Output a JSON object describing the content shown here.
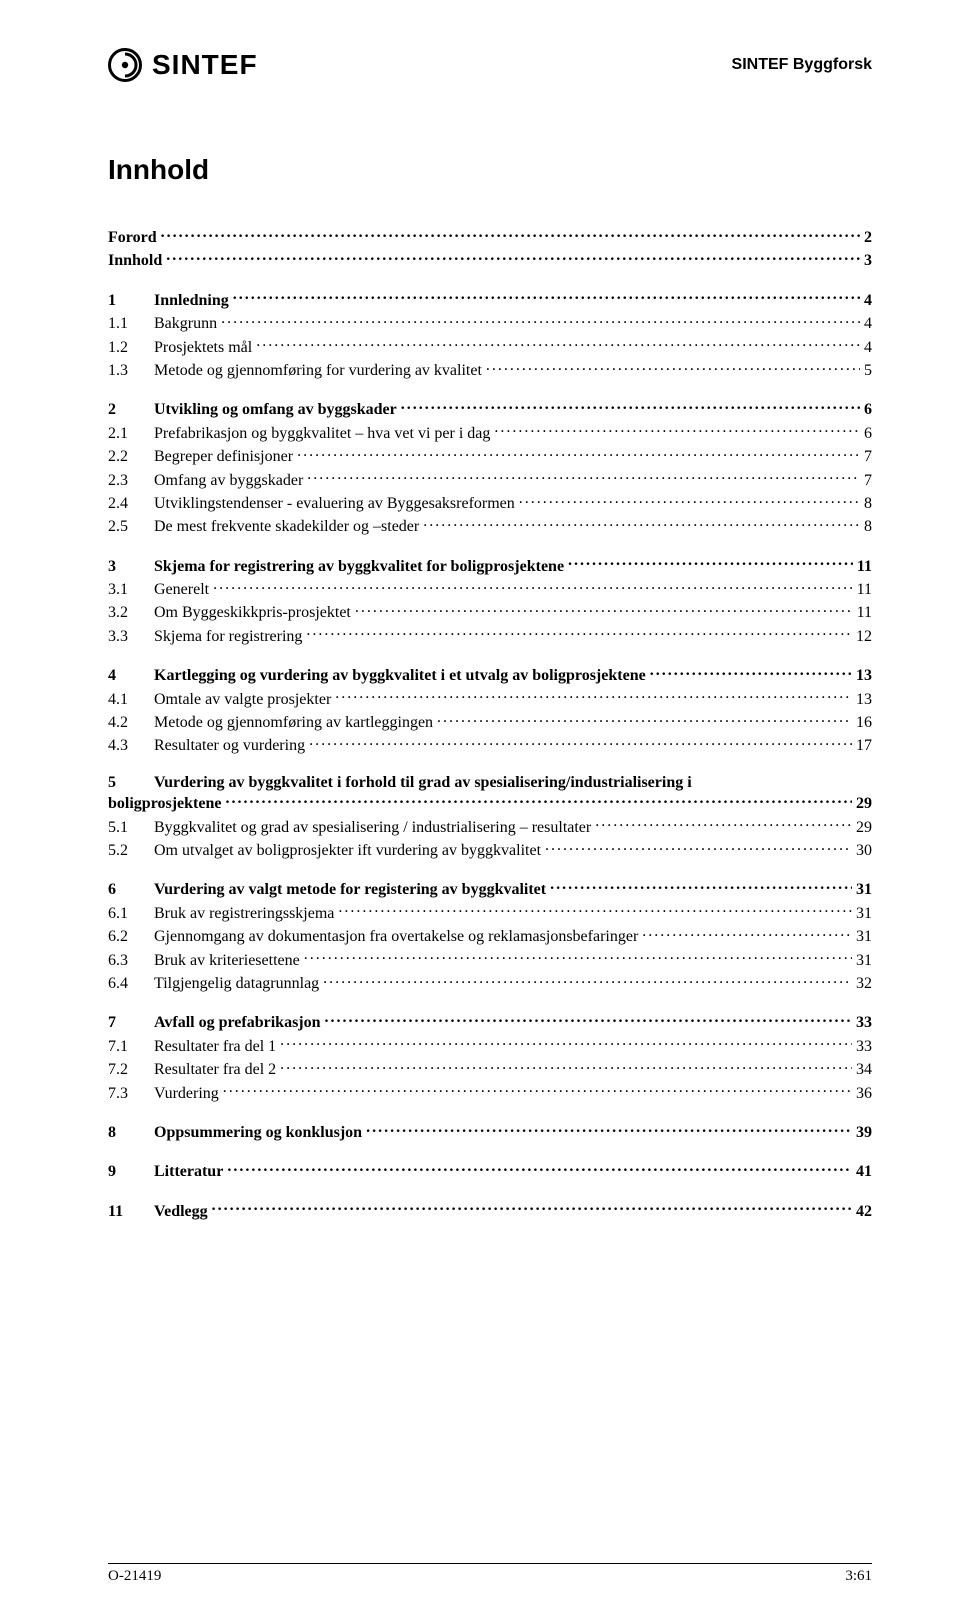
{
  "header": {
    "logo_word": "SINTEF",
    "right_text": "SINTEF Byggforsk"
  },
  "title": "Innhold",
  "toc": [
    {
      "type": "plain",
      "num": "",
      "label": "Forord",
      "page": "2"
    },
    {
      "type": "plain",
      "num": "",
      "label": "Innhold",
      "page": "3"
    },
    {
      "type": "section",
      "num": "1",
      "label": "Innledning",
      "page": "4"
    },
    {
      "type": "sub",
      "num": "1.1",
      "label": "Bakgrunn",
      "page": "4"
    },
    {
      "type": "sub",
      "num": "1.2",
      "label": "Prosjektets mål",
      "page": "4"
    },
    {
      "type": "sub",
      "num": "1.3",
      "label": "Metode og gjennomføring for vurdering av kvalitet",
      "page": "5"
    },
    {
      "type": "section",
      "num": "2",
      "label": "Utvikling og omfang av byggskader",
      "page": "6"
    },
    {
      "type": "sub",
      "num": "2.1",
      "label": "Prefabrikasjon og byggkvalitet – hva vet vi per i dag",
      "page": "6"
    },
    {
      "type": "sub",
      "num": "2.2",
      "label": "Begreper definisjoner",
      "page": "7"
    },
    {
      "type": "sub",
      "num": "2.3",
      "label": "Omfang av byggskader",
      "page": "7"
    },
    {
      "type": "sub",
      "num": "2.4",
      "label": "Utviklingstendenser - evaluering av Byggesaksreformen",
      "page": "8"
    },
    {
      "type": "sub",
      "num": "2.5",
      "label": "De mest frekvente skadekilder og –steder",
      "page": "8"
    },
    {
      "type": "section",
      "num": "3",
      "label": "Skjema for registrering av byggkvalitet for boligprosjektene",
      "page": "11"
    },
    {
      "type": "sub",
      "num": "3.1",
      "label": "Generelt",
      "page": "11"
    },
    {
      "type": "sub",
      "num": "3.2",
      "label": "Om Byggeskikkpris-prosjektet",
      "page": "11"
    },
    {
      "type": "sub",
      "num": "3.3",
      "label": "Skjema for registrering",
      "page": "12"
    },
    {
      "type": "section",
      "num": "4",
      "label": "Kartlegging og vurdering av byggkvalitet i et utvalg av boligprosjektene",
      "page": "13"
    },
    {
      "type": "sub",
      "num": "4.1",
      "label": "Omtale av valgte prosjekter",
      "page": "13"
    },
    {
      "type": "sub",
      "num": "4.2",
      "label": "Metode og gjennomføring av kartleggingen",
      "page": "16"
    },
    {
      "type": "sub",
      "num": "4.3",
      "label": "Resultater og vurdering",
      "page": "17"
    },
    {
      "type": "section-wrap",
      "num": "5",
      "label_line1": "Vurdering av byggkvalitet i forhold til grad av spesialisering/industrialisering i",
      "label_line2": "boligprosjektene",
      "page": "29"
    },
    {
      "type": "sub",
      "num": "5.1",
      "label": "Byggkvalitet og grad av spesialisering / industrialisering – resultater",
      "page": "29"
    },
    {
      "type": "sub",
      "num": "5.2",
      "label": "Om utvalget av boligprosjekter ift vurdering av byggkvalitet",
      "page": "30"
    },
    {
      "type": "section",
      "num": "6",
      "label": "Vurdering av valgt metode for registering av byggkvalitet",
      "page": "31"
    },
    {
      "type": "sub",
      "num": "6.1",
      "label": "Bruk av registreringsskjema",
      "page": "31"
    },
    {
      "type": "sub",
      "num": "6.2",
      "label": "Gjennomgang av dokumentasjon fra overtakelse og reklamasjonsbefaringer",
      "page": "31"
    },
    {
      "type": "sub",
      "num": "6.3",
      "label": "Bruk av kriteriesettene",
      "page": "31"
    },
    {
      "type": "sub",
      "num": "6.4",
      "label": "Tilgjengelig datagrunnlag",
      "page": "32"
    },
    {
      "type": "section",
      "num": "7",
      "label": "Avfall og prefabrikasjon",
      "page": "33"
    },
    {
      "type": "sub",
      "num": "7.1",
      "label": "Resultater fra del 1",
      "page": "33"
    },
    {
      "type": "sub",
      "num": "7.2",
      "label": "Resultater fra del 2",
      "page": "34"
    },
    {
      "type": "sub",
      "num": "7.3",
      "label": "Vurdering",
      "page": "36"
    },
    {
      "type": "section",
      "num": "8",
      "label": "Oppsummering og konklusjon",
      "page": "39"
    },
    {
      "type": "section",
      "num": "9",
      "label": "Litteratur",
      "page": "41"
    },
    {
      "type": "section",
      "num": "11",
      "label": "Vedlegg",
      "page": "42"
    }
  ],
  "footer": {
    "left": "O-21419",
    "right": "3:61"
  }
}
